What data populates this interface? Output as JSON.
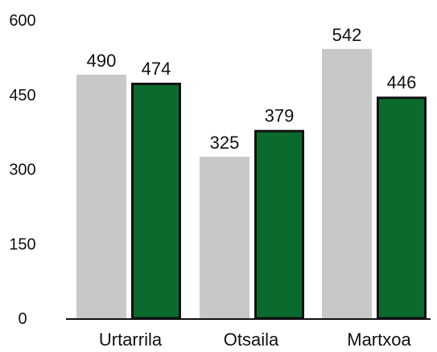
{
  "chart_data": {
    "type": "bar",
    "categories": [
      "Urtarrila",
      "Otsaila",
      "Martxoa"
    ],
    "series": [
      {
        "values": [
          490,
          325,
          542
        ],
        "color": "#c8c8c8",
        "outline": "none"
      },
      {
        "values": [
          474,
          379,
          446
        ],
        "color": "#0b6b2e",
        "outline": "#111111"
      }
    ],
    "y_ticks": [
      0,
      150,
      300,
      450,
      600
    ],
    "ylim": [
      0,
      600
    ],
    "data_labels": true,
    "legend": "none",
    "grid": false,
    "title": "",
    "xlabel": "",
    "ylabel": ""
  }
}
